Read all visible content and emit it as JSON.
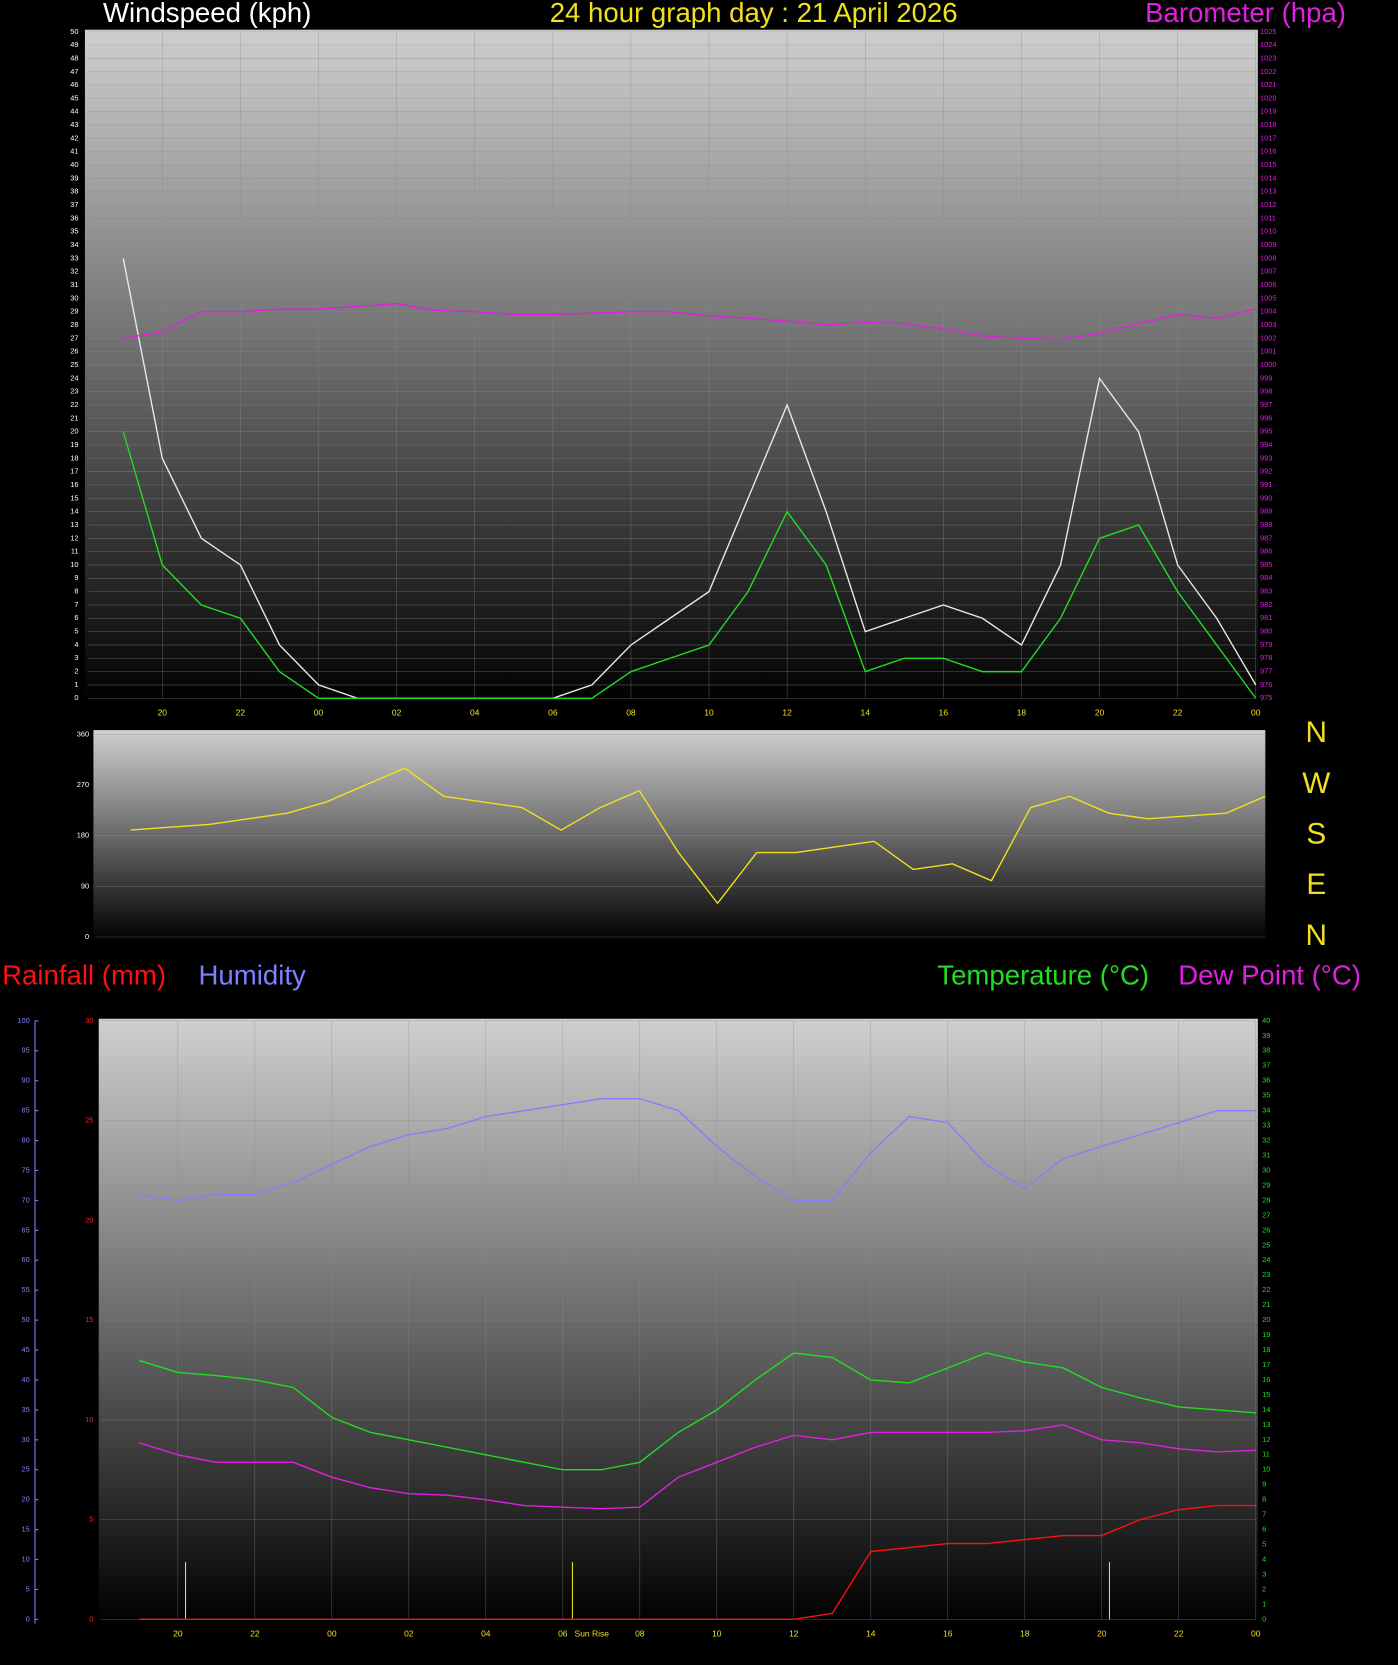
{
  "chart_data": [
    {
      "type": "line",
      "title": "24 hour graph day : 21 April 2026",
      "y_label": "Windspeed (kph)",
      "y2_label": "Barometer (hpa)",
      "x": [
        19,
        20,
        21,
        22,
        23,
        24,
        25,
        26,
        27,
        28,
        29,
        30,
        31,
        32,
        33,
        34,
        35,
        36,
        37,
        38,
        39,
        40,
        41,
        42,
        43,
        44,
        45,
        46,
        47,
        48
      ],
      "xlim": [
        18.1,
        48
      ],
      "xticks": [
        {
          "value": 20,
          "label": "20"
        },
        {
          "value": 22,
          "label": "22"
        },
        {
          "value": 24,
          "label": "00"
        },
        {
          "value": 26,
          "label": "02"
        },
        {
          "value": 28,
          "label": "04"
        },
        {
          "value": 30,
          "label": "06"
        },
        {
          "value": 32,
          "label": "08"
        },
        {
          "value": 34,
          "label": "10"
        },
        {
          "value": 36,
          "label": "12"
        },
        {
          "value": 38,
          "label": "14"
        },
        {
          "value": 40,
          "label": "16"
        },
        {
          "value": 42,
          "label": "18"
        },
        {
          "value": 44,
          "label": "20"
        },
        {
          "value": 46,
          "label": "22"
        },
        {
          "value": 48,
          "label": "00"
        }
      ],
      "ylim": [
        0,
        50
      ],
      "yticks": [
        0,
        1,
        2,
        3,
        4,
        5,
        6,
        7,
        8,
        9,
        10,
        11,
        12,
        13,
        14,
        15,
        16,
        17,
        18,
        19,
        20,
        21,
        22,
        23,
        24,
        25,
        26,
        27,
        28,
        29,
        30,
        31,
        32,
        33,
        34,
        35,
        36,
        37,
        38,
        39,
        40,
        41,
        42,
        43,
        44,
        45,
        46,
        47,
        48,
        49,
        50
      ],
      "y2lim": [
        975,
        1025
      ],
      "y2ticks": [
        975,
        976,
        977,
        978,
        979,
        980,
        981,
        982,
        983,
        984,
        985,
        986,
        987,
        988,
        989,
        990,
        991,
        992,
        993,
        994,
        995,
        996,
        997,
        998,
        999,
        1000,
        1001,
        1002,
        1003,
        1004,
        1005,
        1006,
        1007,
        1008,
        1009,
        1010,
        1011,
        1012,
        1013,
        1014,
        1015,
        1016,
        1017,
        1018,
        1019,
        1020,
        1021,
        1022,
        1023,
        1024,
        1025
      ],
      "grid": true,
      "series": [
        {
          "color": "#e8e8e8",
          "values": [
            33,
            18,
            12,
            10,
            4,
            1,
            0,
            0,
            0,
            0,
            0,
            0,
            1,
            4,
            6,
            8,
            15,
            22,
            14,
            5,
            6,
            7,
            6,
            4,
            10,
            24,
            20,
            10,
            6,
            1
          ]
        },
        {
          "color": "#22dd22",
          "values": [
            20,
            10,
            7,
            6,
            2,
            0,
            0,
            0,
            0,
            0,
            0,
            0,
            0,
            2,
            3,
            4,
            8,
            14,
            10,
            2,
            3,
            3,
            2,
            2,
            6,
            12,
            13,
            8,
            4,
            0
          ]
        },
        {
          "color": "#e020e0",
          "axis": "y2",
          "values": [
            1002,
            1002.5,
            1004,
            1004,
            1004.2,
            1004.2,
            1004.4,
            1004.6,
            1004.1,
            1004,
            1003.8,
            1003.8,
            1003.9,
            1004,
            1004,
            1003.7,
            1003.5,
            1003.3,
            1003,
            1003.2,
            1003.1,
            1002.7,
            1002.2,
            1002,
            1001.9,
            1002.4,
            1003.1,
            1003.8,
            1003.5,
            1004.2
          ]
        }
      ]
    },
    {
      "type": "line",
      "x": [
        19,
        20,
        21,
        22,
        23,
        24,
        25,
        26,
        27,
        28,
        29,
        30,
        31,
        32,
        33,
        34,
        35,
        36,
        37,
        38,
        39,
        40,
        41,
        42,
        43,
        44,
        45,
        46,
        47,
        48
      ],
      "xlim": [
        18.1,
        48
      ],
      "ylim": [
        0,
        360
      ],
      "yticks": [
        0,
        90,
        180,
        270,
        360
      ],
      "y2lim": [
        0,
        360
      ],
      "y2ticks": [
        {
          "value": 360,
          "label": "N"
        },
        {
          "value": 270,
          "label": "W"
        },
        {
          "value": 180,
          "label": "S"
        },
        {
          "value": 90,
          "label": "E"
        },
        {
          "value": 0,
          "label": "N"
        }
      ],
      "grid": true,
      "series": [
        {
          "color": "#f0e020",
          "values": [
            190,
            195,
            200,
            210,
            220,
            240,
            270,
            300,
            250,
            240,
            230,
            190,
            230,
            260,
            150,
            60,
            150,
            150,
            160,
            170,
            120,
            130,
            100,
            230,
            250,
            220,
            210,
            215,
            220,
            250
          ]
        }
      ]
    },
    {
      "type": "line",
      "x": [
        19,
        20,
        21,
        22,
        23,
        24,
        25,
        26,
        27,
        28,
        29,
        30,
        31,
        32,
        33,
        34,
        35,
        36,
        37,
        38,
        39,
        40,
        41,
        42,
        43,
        44,
        45,
        46,
        47,
        48
      ],
      "xlim": [
        18,
        48
      ],
      "xticks": [
        {
          "value": 20,
          "label": "20"
        },
        {
          "value": 22,
          "label": "22"
        },
        {
          "value": 24,
          "label": "00"
        },
        {
          "value": 26,
          "label": "02"
        },
        {
          "value": 28,
          "label": "04"
        },
        {
          "value": 30,
          "label": "06"
        },
        {
          "value": 32,
          "label": "08"
        },
        {
          "value": 34,
          "label": "10"
        },
        {
          "value": 36,
          "label": "12"
        },
        {
          "value": 38,
          "label": "14"
        },
        {
          "value": 40,
          "label": "16"
        },
        {
          "value": 42,
          "label": "18"
        },
        {
          "value": 44,
          "label": "20"
        },
        {
          "value": 46,
          "label": "22"
        },
        {
          "value": 48,
          "label": "00"
        }
      ],
      "ylim": [
        0,
        30
      ],
      "yticks": [
        0,
        5,
        10,
        15,
        20,
        25,
        30
      ],
      "y2lim": [
        0,
        40
      ],
      "y2ticks": [
        0,
        1,
        2,
        3,
        4,
        5,
        6,
        7,
        8,
        9,
        10,
        11,
        12,
        13,
        14,
        15,
        16,
        17,
        18,
        19,
        20,
        21,
        22,
        23,
        24,
        25,
        26,
        27,
        28,
        29,
        30,
        31,
        32,
        33,
        34,
        35,
        36,
        37,
        38,
        39,
        40
      ],
      "y3lim": [
        0,
        100
      ],
      "y3ticks": [
        0,
        5,
        10,
        15,
        20,
        25,
        30,
        35,
        40,
        45,
        50,
        55,
        60,
        65,
        70,
        75,
        80,
        85,
        90,
        95,
        100
      ],
      "grid": true,
      "markers": [
        20.2,
        30.25,
        44.2
      ],
      "annotations": [
        {
          "x": 30.25,
          "text": "Sun Rise"
        }
      ],
      "series": [
        {
          "name": "Rainfall (mm)",
          "color": "#ff1010",
          "values": [
            0,
            0,
            0,
            0,
            0,
            0,
            0,
            0,
            0,
            0,
            0,
            0,
            0,
            0,
            0,
            0,
            0,
            0,
            0.3,
            3.4,
            3.6,
            3.8,
            3.8,
            4.0,
            4.2,
            4.2,
            5.0,
            5.5,
            5.7,
            5.7
          ]
        },
        {
          "name": "Humidity",
          "color": "#8080ff",
          "axis": "y3",
          "values": [
            71,
            70,
            71,
            71,
            73,
            76,
            79,
            81,
            82,
            84,
            85,
            86,
            87,
            87,
            85,
            79,
            74,
            70,
            70,
            78,
            84,
            83,
            76,
            72,
            77,
            79,
            81,
            83,
            85,
            85
          ]
        },
        {
          "name": "Temperature (°C)",
          "color": "#22dd22",
          "axis": "y2",
          "values": [
            17.3,
            16.5,
            16.3,
            16,
            15.5,
            13.5,
            12.5,
            12,
            11.5,
            11,
            10.5,
            10,
            10,
            10.5,
            12.5,
            14,
            16,
            17.8,
            17.5,
            16,
            15.8,
            16.8,
            17.8,
            17.2,
            16.8,
            15.5,
            14.8,
            14.2,
            14,
            13.8
          ]
        },
        {
          "name": "Dew Point (°C)",
          "color": "#e020e0",
          "axis": "y2",
          "values": [
            11.8,
            11,
            10.5,
            10.5,
            10.5,
            9.5,
            8.8,
            8.4,
            8.3,
            8,
            7.6,
            7.5,
            7.4,
            7.5,
            9.5,
            10.5,
            11.5,
            12.3,
            12,
            12.5,
            12.5,
            12.5,
            12.5,
            12.6,
            13,
            12,
            11.8,
            11.4,
            11.2,
            11.3
          ]
        }
      ]
    }
  ]
}
